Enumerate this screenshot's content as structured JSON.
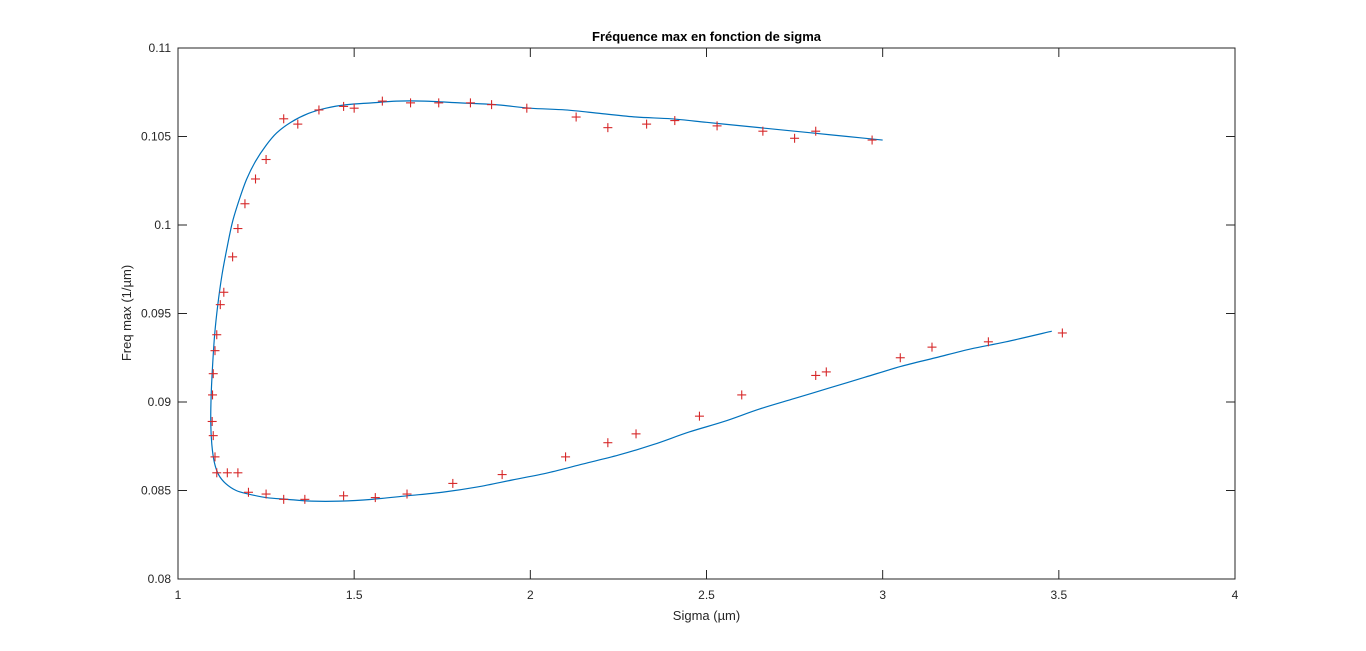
{
  "chart_data": {
    "type": "scatter",
    "title": "Fréquence max en fonction de sigma",
    "xlabel": "Sigma (µm)",
    "ylabel": "Freq max (1/µm)",
    "xlim": [
      1,
      4
    ],
    "ylim": [
      0.08,
      0.11
    ],
    "xticks": [
      1,
      1.5,
      2,
      2.5,
      3,
      3.5,
      4
    ],
    "xtick_labels": [
      "1",
      "1.5",
      "2",
      "2.5",
      "3",
      "3.5",
      "4"
    ],
    "yticks": [
      0.08,
      0.085,
      0.09,
      0.095,
      0.1,
      0.105,
      0.11
    ],
    "ytick_labels": [
      "0.08",
      "0.085",
      "0.09",
      "0.095",
      "0.1",
      "0.105",
      "0.11"
    ],
    "grid": false,
    "colors": {
      "points": "#d62728",
      "curve": "#0072bd",
      "axes": "#262626"
    },
    "series": [
      {
        "kind": "points",
        "marker": "+",
        "x": [
          2.97,
          2.81,
          2.75,
          2.66,
          2.53,
          2.41,
          2.33,
          2.22,
          2.13,
          1.99,
          1.89,
          1.83,
          1.74,
          1.66,
          1.58,
          1.5,
          1.47,
          1.4,
          1.34,
          1.3,
          1.25,
          1.22,
          1.19,
          1.17,
          1.155,
          1.13,
          1.12,
          1.11,
          1.105,
          1.1,
          1.098,
          1.097,
          1.1,
          1.105,
          1.11,
          1.14,
          1.17,
          1.2,
          1.25,
          1.3,
          1.36,
          1.47,
          1.56,
          1.65,
          1.78,
          1.92,
          2.1,
          2.22,
          2.3,
          2.48,
          2.6,
          2.81,
          2.84,
          3.05,
          3.14,
          3.3,
          3.51
        ],
        "y": [
          0.1048,
          0.1053,
          0.1049,
          0.1053,
          0.1056,
          0.1059,
          0.1057,
          0.1055,
          0.1061,
          0.1066,
          0.1068,
          0.1069,
          0.1069,
          0.1069,
          0.107,
          0.1066,
          0.1067,
          0.1065,
          0.1057,
          0.106,
          0.1037,
          0.1026,
          0.1012,
          0.0998,
          0.0982,
          0.0962,
          0.0955,
          0.0938,
          0.0929,
          0.0916,
          0.0904,
          0.0889,
          0.0881,
          0.0869,
          0.086,
          0.086,
          0.086,
          0.0849,
          0.0848,
          0.0845,
          0.0845,
          0.0847,
          0.0846,
          0.0848,
          0.0854,
          0.0859,
          0.0869,
          0.0877,
          0.0882,
          0.0892,
          0.0904,
          0.0915,
          0.0917,
          0.0925,
          0.0931,
          0.0934,
          0.0939
        ]
      },
      {
        "kind": "curve",
        "x": [
          3.0,
          2.9,
          2.8,
          2.7,
          2.6,
          2.5,
          2.4,
          2.3,
          2.2,
          2.1,
          2.0,
          1.9,
          1.8,
          1.7,
          1.62,
          1.55,
          1.48,
          1.42,
          1.37,
          1.32,
          1.28,
          1.25,
          1.22,
          1.195,
          1.175,
          1.155,
          1.14,
          1.125,
          1.113,
          1.104,
          1.098,
          1.094,
          1.093,
          1.096,
          1.103,
          1.115,
          1.135,
          1.165,
          1.2,
          1.25,
          1.31,
          1.38,
          1.46,
          1.55,
          1.65,
          1.75,
          1.85,
          1.95,
          2.05,
          2.15,
          2.25,
          2.35,
          2.45,
          2.55,
          2.65,
          2.75,
          2.85,
          2.95,
          3.05,
          3.15,
          3.25,
          3.35,
          3.48
        ],
        "y": [
          0.1048,
          0.105,
          0.1052,
          0.1054,
          0.1056,
          0.1058,
          0.106,
          0.1061,
          0.1063,
          0.1065,
          0.1066,
          0.1068,
          0.1069,
          0.107,
          0.107,
          0.1069,
          0.1068,
          0.1066,
          0.1063,
          0.1058,
          0.1052,
          0.1045,
          0.1036,
          0.1026,
          0.1015,
          0.1002,
          0.0988,
          0.0972,
          0.0955,
          0.0938,
          0.092,
          0.0903,
          0.0888,
          0.0876,
          0.0866,
          0.0859,
          0.0854,
          0.085,
          0.0848,
          0.0846,
          0.0845,
          0.0844,
          0.0844,
          0.0845,
          0.0847,
          0.0849,
          0.0852,
          0.0856,
          0.086,
          0.0865,
          0.087,
          0.0876,
          0.0883,
          0.0889,
          0.0896,
          0.0902,
          0.0908,
          0.0914,
          0.092,
          0.0925,
          0.093,
          0.0934,
          0.094
        ]
      }
    ]
  }
}
